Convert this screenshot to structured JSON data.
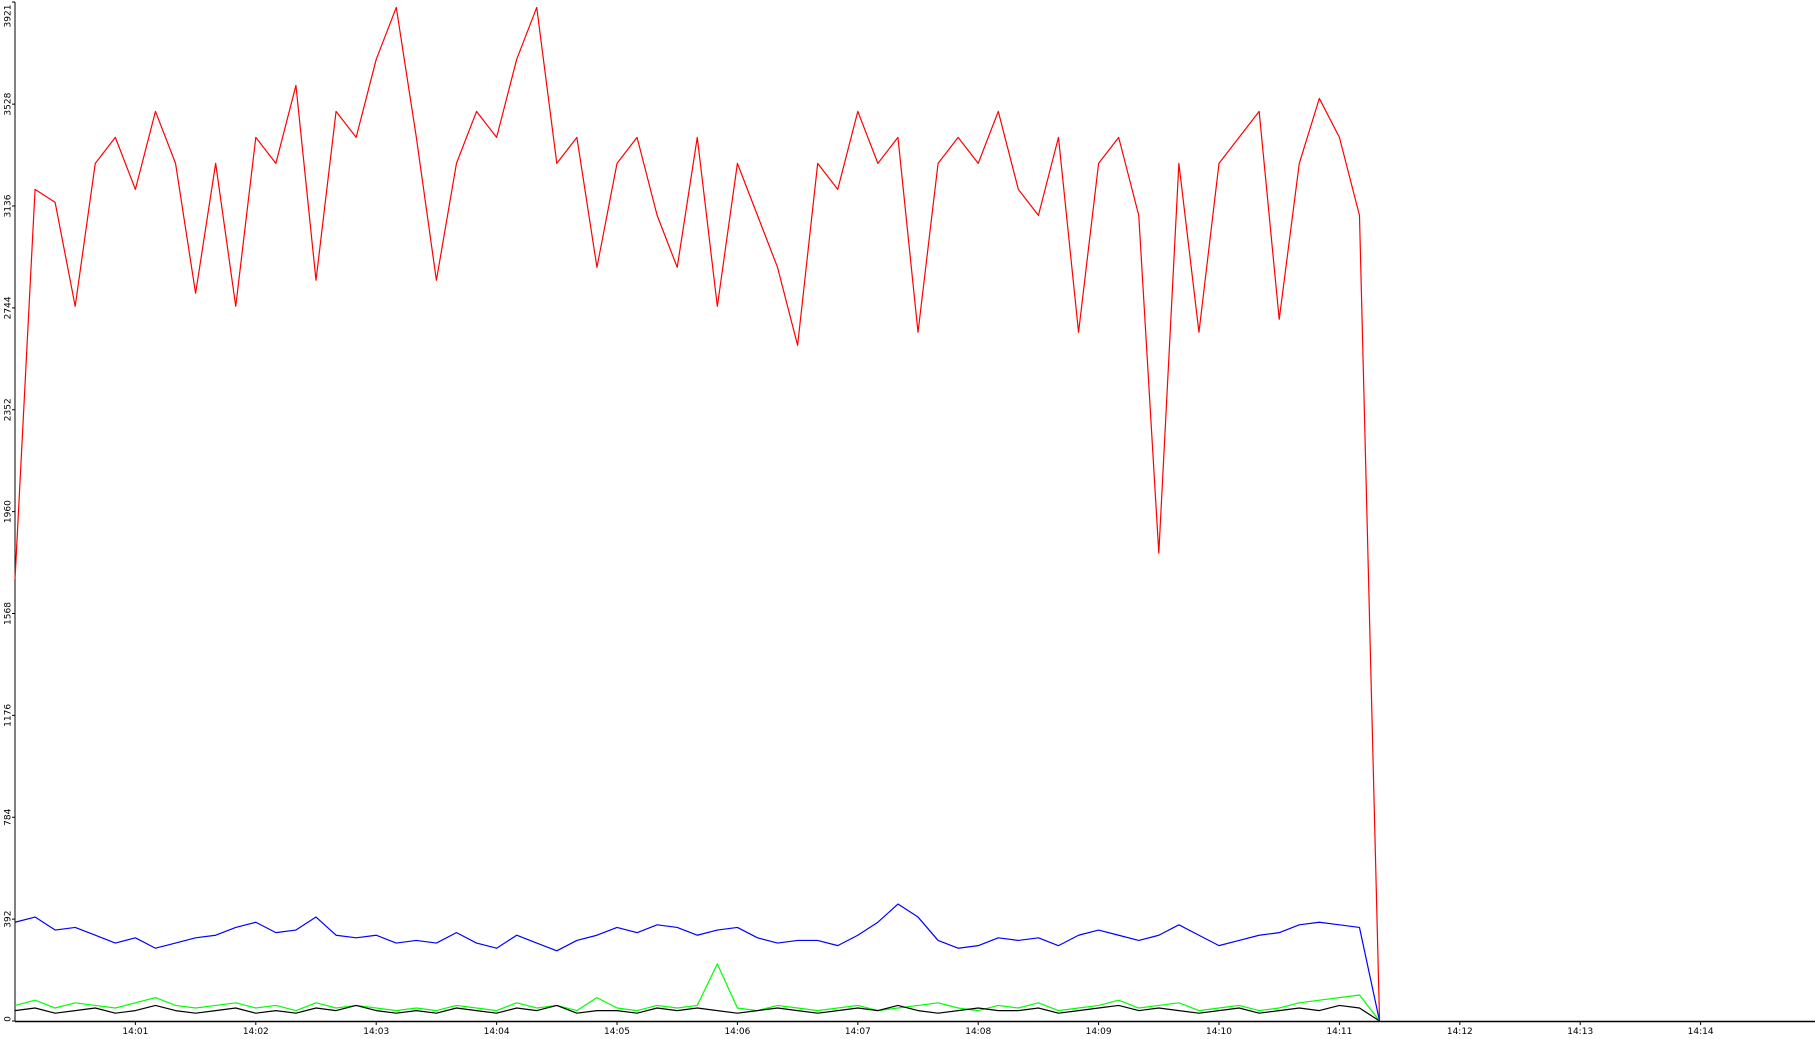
{
  "chart_data": {
    "type": "line",
    "x": [
      "14:00:00",
      "14:00:10",
      "14:00:20",
      "14:00:30",
      "14:00:40",
      "14:00:50",
      "14:01:00",
      "14:01:10",
      "14:01:20",
      "14:01:30",
      "14:01:40",
      "14:01:50",
      "14:02:00",
      "14:02:10",
      "14:02:20",
      "14:02:30",
      "14:02:40",
      "14:02:50",
      "14:03:00",
      "14:03:10",
      "14:03:20",
      "14:03:30",
      "14:03:40",
      "14:03:50",
      "14:04:00",
      "14:04:10",
      "14:04:20",
      "14:04:30",
      "14:04:40",
      "14:04:50",
      "14:05:00",
      "14:05:10",
      "14:05:20",
      "14:05:30",
      "14:05:40",
      "14:05:50",
      "14:06:00",
      "14:06:10",
      "14:06:20",
      "14:06:30",
      "14:06:40",
      "14:06:50",
      "14:07:00",
      "14:07:10",
      "14:07:20",
      "14:07:30",
      "14:07:40",
      "14:07:50",
      "14:08:00",
      "14:08:10",
      "14:08:20",
      "14:08:30",
      "14:08:40",
      "14:08:50",
      "14:09:00",
      "14:09:10",
      "14:09:20",
      "14:09:30",
      "14:09:40",
      "14:09:50",
      "14:10:00",
      "14:10:10",
      "14:10:20",
      "14:10:30",
      "14:10:40",
      "14:10:50",
      "14:11:00",
      "14:11:10",
      "14:11:20"
    ],
    "series": [
      {
        "color": "#ff0000",
        "values": [
          1700,
          3200,
          3150,
          2750,
          3300,
          3400,
          3200,
          3500,
          3300,
          2800,
          3300,
          2750,
          3400,
          3300,
          3600,
          2850,
          3500,
          3400,
          3700,
          3900,
          3400,
          2850,
          3300,
          3500,
          3400,
          3700,
          3900,
          3300,
          3400,
          2900,
          3300,
          3400,
          3100,
          2900,
          3400,
          2750,
          3300,
          3100,
          2900,
          2600,
          3300,
          3200,
          3500,
          3300,
          3400,
          2650,
          3300,
          3400,
          3300,
          3500,
          3200,
          3100,
          3400,
          2650,
          3300,
          3400,
          3100,
          1800,
          3300,
          2650,
          3300,
          3400,
          3500,
          2700,
          3300,
          3550,
          3400,
          3100,
          0
        ]
      },
      {
        "color": "#0000ff",
        "values": [
          380,
          400,
          350,
          360,
          330,
          300,
          320,
          280,
          300,
          320,
          330,
          360,
          380,
          340,
          350,
          400,
          330,
          320,
          330,
          300,
          310,
          300,
          340,
          300,
          280,
          330,
          300,
          270,
          310,
          330,
          360,
          340,
          370,
          360,
          330,
          350,
          360,
          320,
          300,
          310,
          310,
          290,
          330,
          380,
          450,
          400,
          310,
          280,
          290,
          320,
          310,
          320,
          290,
          330,
          350,
          330,
          310,
          330,
          370,
          330,
          290,
          310,
          330,
          340,
          370,
          380,
          370,
          360,
          0
        ]
      },
      {
        "color": "#00ff00",
        "values": [
          60,
          80,
          50,
          70,
          60,
          50,
          70,
          90,
          60,
          50,
          60,
          70,
          50,
          60,
          40,
          70,
          50,
          60,
          50,
          40,
          50,
          40,
          60,
          50,
          40,
          70,
          50,
          60,
          40,
          90,
          50,
          40,
          60,
          50,
          60,
          220,
          50,
          40,
          60,
          50,
          40,
          50,
          60,
          40,
          50,
          60,
          70,
          50,
          40,
          60,
          50,
          70,
          40,
          50,
          60,
          80,
          50,
          60,
          70,
          40,
          50,
          60,
          40,
          50,
          70,
          80,
          90,
          100,
          0
        ]
      },
      {
        "color": "#000000",
        "values": [
          40,
          50,
          30,
          40,
          50,
          30,
          40,
          60,
          40,
          30,
          40,
          50,
          30,
          40,
          30,
          50,
          40,
          60,
          40,
          30,
          40,
          30,
          50,
          40,
          30,
          50,
          40,
          60,
          30,
          40,
          40,
          30,
          50,
          40,
          50,
          40,
          30,
          40,
          50,
          40,
          30,
          40,
          50,
          40,
          60,
          40,
          30,
          40,
          50,
          40,
          40,
          50,
          30,
          40,
          50,
          60,
          40,
          50,
          40,
          30,
          40,
          50,
          30,
          40,
          50,
          40,
          60,
          50,
          0
        ]
      }
    ],
    "xlim": [
      "14:00:00",
      "14:14:57"
    ],
    "xticks": [
      "14:01",
      "14:02",
      "14:03",
      "14:04",
      "14:05",
      "14:06",
      "14:07",
      "14:08",
      "14:09",
      "14:10",
      "14:11",
      "14:12",
      "14:13",
      "14:14"
    ],
    "ylim": [
      0,
      3921
    ],
    "yticks": [
      0,
      392,
      784,
      1176,
      1568,
      1960,
      2352,
      2744,
      3136,
      3528,
      3921
    ]
  }
}
